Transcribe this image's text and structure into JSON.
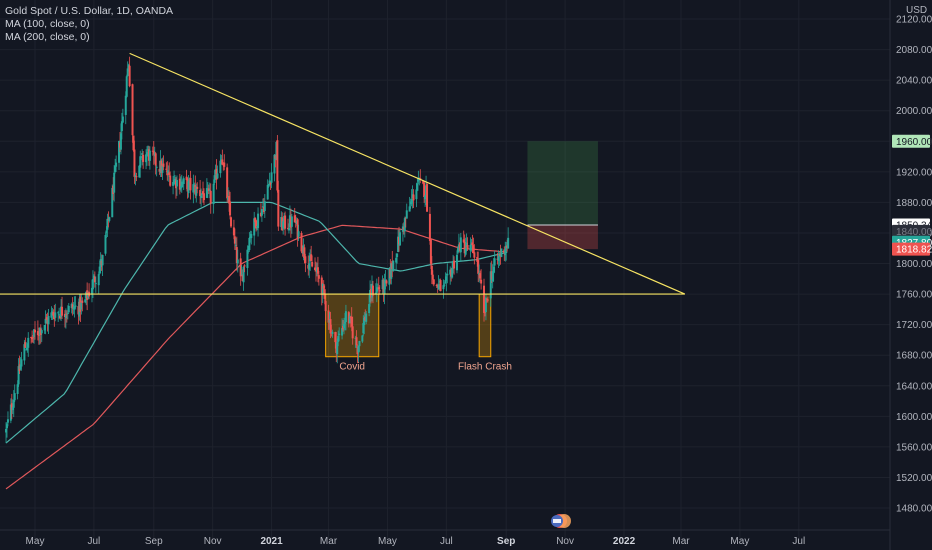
{
  "header": {
    "symbol_line": "Gold Spot / U.S. Dollar, 1D, OANDA",
    "ma100_line": "MA (100, close, 0)",
    "ma200_line": "MA (200, close, 0)",
    "currency": "USD"
  },
  "chart_data": {
    "type": "candlestick",
    "y_axis": {
      "ticks": [
        2120,
        2080,
        2040,
        2000,
        1960,
        1920,
        1880,
        1840,
        1800,
        1760,
        1720,
        1680,
        1640,
        1600,
        1560,
        1520,
        1480
      ],
      "tick_labels": [
        "2120.000",
        "2080.000",
        "2040.000",
        "2000.000",
        "1960.000",
        "1920.000",
        "1880.000",
        "1840.000",
        "1800.000",
        "1760.000",
        "1720.000",
        "1680.000",
        "1640.000",
        "1600.000",
        "1560.000",
        "1520.000",
        "1480.000"
      ],
      "range": [
        1470,
        2130
      ]
    },
    "x_axis": {
      "labels": [
        "May",
        "Jul",
        "Sep",
        "Nov",
        "2021",
        "Mar",
        "May",
        "Jul",
        "Sep",
        "Nov",
        "2022",
        "Mar",
        "May",
        "Jul"
      ],
      "label_bold": [
        false,
        false,
        false,
        false,
        true,
        false,
        false,
        false,
        true,
        false,
        true,
        false,
        false,
        false
      ]
    },
    "price_anchors": [
      {
        "date": "2020-04-01",
        "price": 1580
      },
      {
        "date": "2020-04-20",
        "price": 1690
      },
      {
        "date": "2020-05-20",
        "price": 1735
      },
      {
        "date": "2020-06-20",
        "price": 1745
      },
      {
        "date": "2020-07-10",
        "price": 1805
      },
      {
        "date": "2020-07-28",
        "price": 1960
      },
      {
        "date": "2020-08-06",
        "price": 2065
      },
      {
        "date": "2020-08-12",
        "price": 1920
      },
      {
        "date": "2020-08-25",
        "price": 1945
      },
      {
        "date": "2020-09-20",
        "price": 1910
      },
      {
        "date": "2020-10-10",
        "price": 1900
      },
      {
        "date": "2020-10-30",
        "price": 1885
      },
      {
        "date": "2020-11-10",
        "price": 1945
      },
      {
        "date": "2020-11-18",
        "price": 1870
      },
      {
        "date": "2020-11-30",
        "price": 1775
      },
      {
        "date": "2020-12-10",
        "price": 1840
      },
      {
        "date": "2020-12-25",
        "price": 1880
      },
      {
        "date": "2021-01-06",
        "price": 1950
      },
      {
        "date": "2021-01-08",
        "price": 1850
      },
      {
        "date": "2021-01-25",
        "price": 1855
      },
      {
        "date": "2021-02-05",
        "price": 1810
      },
      {
        "date": "2021-02-20",
        "price": 1780
      },
      {
        "date": "2021-03-08",
        "price": 1690
      },
      {
        "date": "2021-03-20",
        "price": 1735
      },
      {
        "date": "2021-03-31",
        "price": 1690
      },
      {
        "date": "2021-04-15",
        "price": 1765
      },
      {
        "date": "2021-04-30",
        "price": 1770
      },
      {
        "date": "2021-05-15",
        "price": 1840
      },
      {
        "date": "2021-06-01",
        "price": 1905
      },
      {
        "date": "2021-06-10",
        "price": 1895
      },
      {
        "date": "2021-06-17",
        "price": 1775
      },
      {
        "date": "2021-06-29",
        "price": 1765
      },
      {
        "date": "2021-07-15",
        "price": 1825
      },
      {
        "date": "2021-07-31",
        "price": 1815
      },
      {
        "date": "2021-08-06",
        "price": 1765
      },
      {
        "date": "2021-08-09",
        "price": 1730
      },
      {
        "date": "2021-08-16",
        "price": 1785
      },
      {
        "date": "2021-08-27",
        "price": 1815
      },
      {
        "date": "2021-09-03",
        "price": 1827
      }
    ],
    "ma100_anchors": [
      {
        "date": "2020-04-01",
        "price": 1565
      },
      {
        "date": "2020-06-01",
        "price": 1630
      },
      {
        "date": "2020-08-01",
        "price": 1765
      },
      {
        "date": "2020-09-15",
        "price": 1850
      },
      {
        "date": "2020-11-01",
        "price": 1880
      },
      {
        "date": "2021-01-01",
        "price": 1880
      },
      {
        "date": "2021-02-20",
        "price": 1855
      },
      {
        "date": "2021-04-01",
        "price": 1800
      },
      {
        "date": "2021-05-15",
        "price": 1790
      },
      {
        "date": "2021-06-20",
        "price": 1800
      },
      {
        "date": "2021-08-01",
        "price": 1805
      },
      {
        "date": "2021-09-03",
        "price": 1815
      }
    ],
    "ma200_anchors": [
      {
        "date": "2020-04-01",
        "price": 1505
      },
      {
        "date": "2020-07-01",
        "price": 1590
      },
      {
        "date": "2020-09-15",
        "price": 1700
      },
      {
        "date": "2020-12-01",
        "price": 1800
      },
      {
        "date": "2021-02-01",
        "price": 1835
      },
      {
        "date": "2021-03-15",
        "price": 1850
      },
      {
        "date": "2021-05-15",
        "price": 1845
      },
      {
        "date": "2021-07-15",
        "price": 1820
      },
      {
        "date": "2021-09-03",
        "price": 1815
      }
    ],
    "trendlines": [
      {
        "name": "descending",
        "from": {
          "date": "2020-08-07",
          "price": 2075
        },
        "to": {
          "date": "2022-03-05",
          "price": 1760
        },
        "color": "#f7e463"
      },
      {
        "name": "horizontal support",
        "from": {
          "date": "2020-03-15",
          "price": 1760
        },
        "to": {
          "date": "2022-03-05",
          "price": 1760
        },
        "color": "#f7e463"
      }
    ],
    "highlight_boxes": [
      {
        "label": "Covid",
        "from": {
          "date": "2021-02-26",
          "price": 1760
        },
        "to": {
          "date": "2021-04-22",
          "price": 1678
        },
        "label_color": "#f0a58f"
      },
      {
        "label": "Flash Crash",
        "from": {
          "date": "2021-08-04",
          "price": 1760
        },
        "to": {
          "date": "2021-08-16",
          "price": 1678
        },
        "label_color": "#f0a58f"
      }
    ],
    "position": {
      "type": "long",
      "from_date": "2021-09-23",
      "to_date": "2021-12-05",
      "entry": 1850.345,
      "target": 1960,
      "stop": 1818.829
    },
    "price_tags": [
      {
        "value": "1960.000",
        "price": 1960,
        "bg": "#b0e6b8",
        "fg": "#131722"
      },
      {
        "value": "1850.345",
        "price": 1850.345,
        "bg": "#ffffff",
        "fg": "#131722"
      },
      {
        "value": "1840.000",
        "price": 1842,
        "bg": "#2a2e39",
        "fg": "#787b86"
      },
      {
        "value": "1827.800",
        "price": 1827.8,
        "bg": "#26a69a",
        "fg": "#ffffff"
      },
      {
        "value": "1818.829",
        "price": 1818.829,
        "bg": "#ef5350",
        "fg": "#ffffff"
      }
    ],
    "colors": {
      "up": "#26a69a",
      "down": "#ef5350",
      "ma100": "#4db6ac",
      "ma200": "#e0585b",
      "trendline": "#f7e463",
      "background": "#131722"
    }
  }
}
